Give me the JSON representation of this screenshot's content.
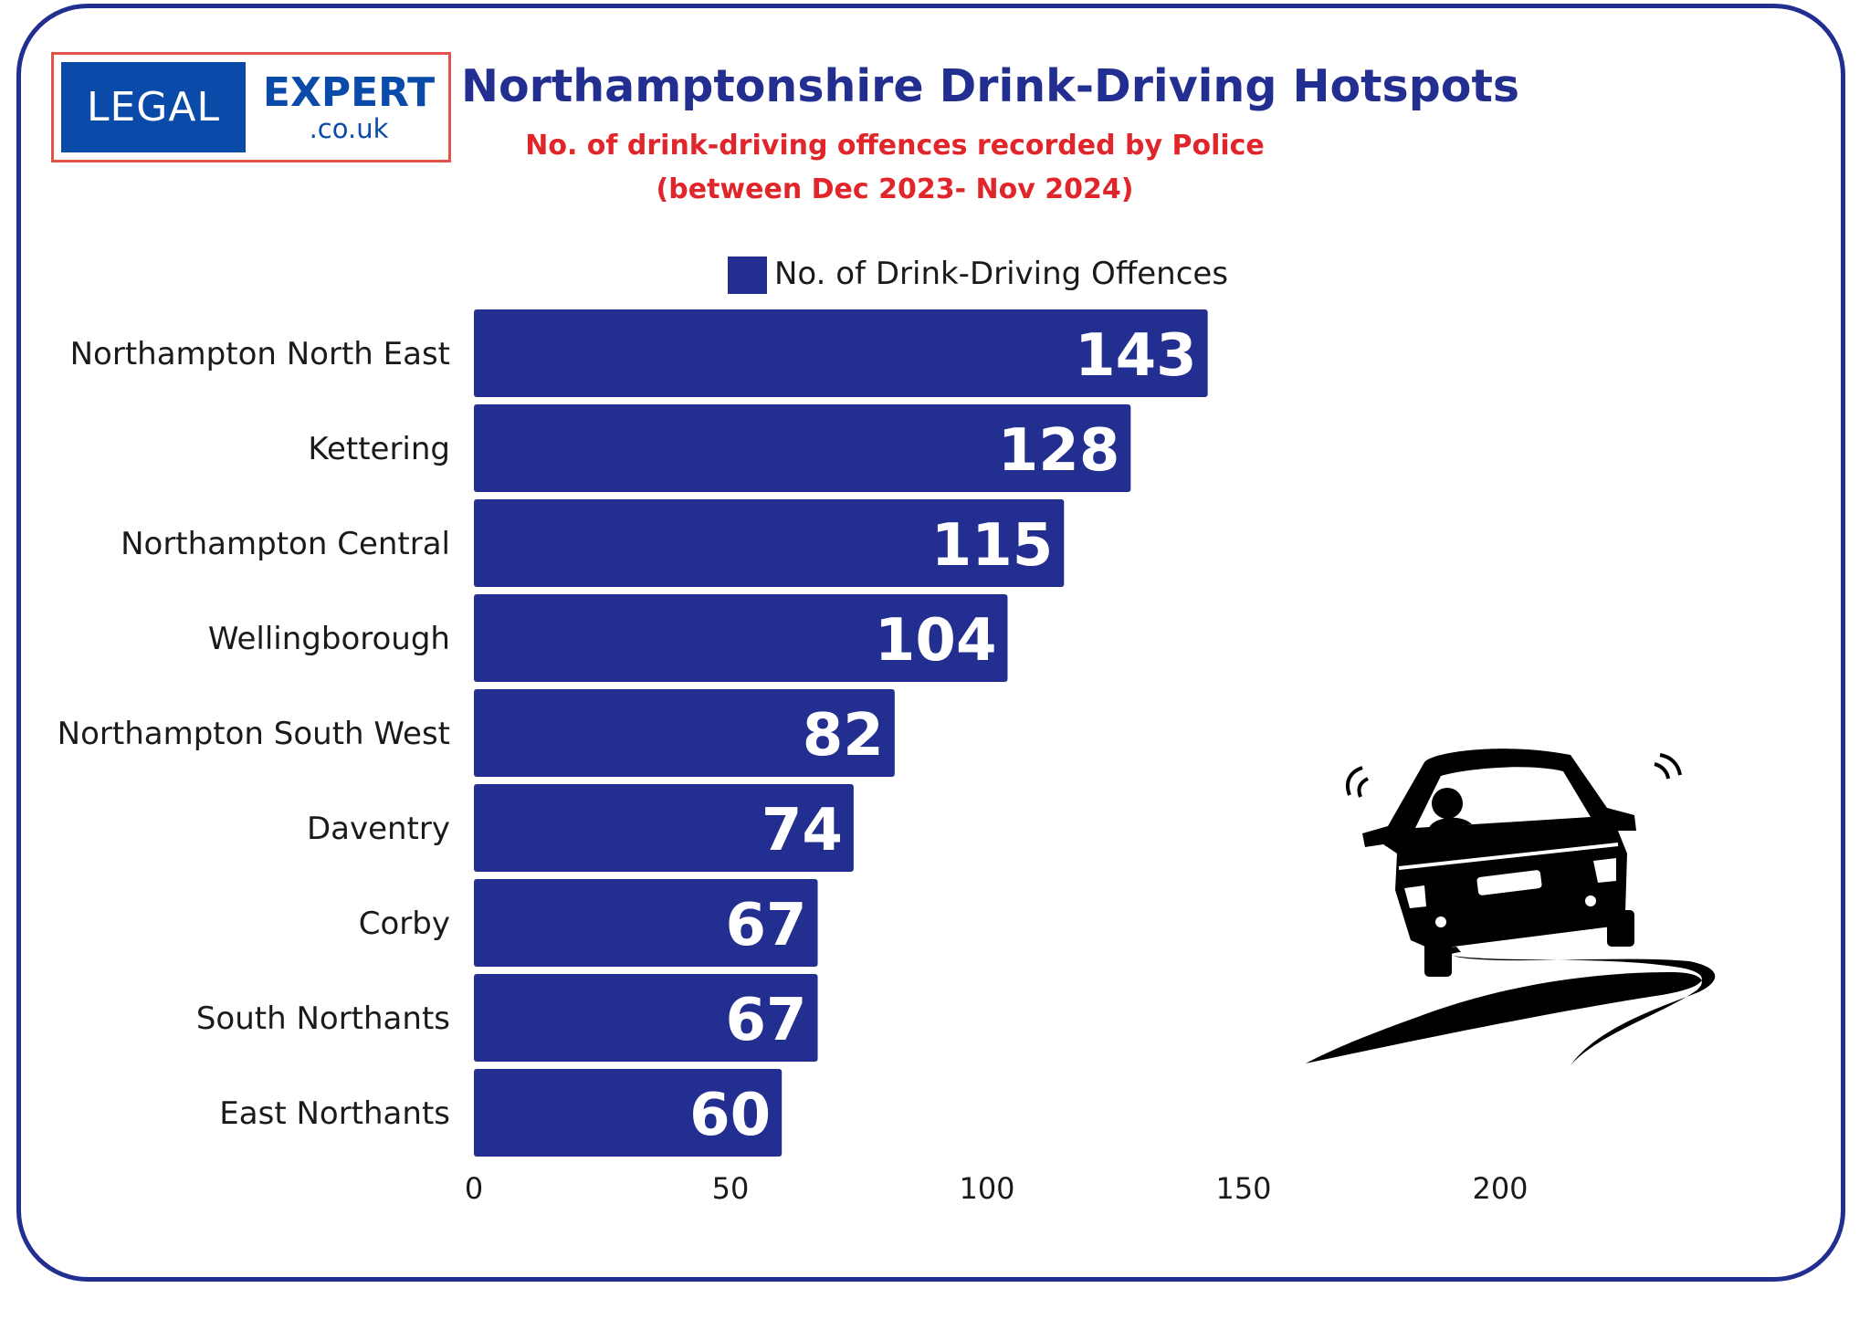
{
  "logo": {
    "left_text": "LEGAL",
    "right_text": "EXPERT",
    "domain_text": ".co.uk"
  },
  "header": {
    "title": "Northamptonshire Drink-Driving Hotspots",
    "subtitle_line1": "No. of drink-driving offences recorded by Police",
    "subtitle_line2": "(between Dec 2023- Nov 2024)"
  },
  "colors": {
    "bar": "#232e91",
    "title": "#232e91",
    "subtitle": "#e0252b",
    "frame": "#232e91",
    "logo_blue": "#0a4aa8",
    "logo_border": "#e2534a"
  },
  "illustration": {
    "icon": "swerving-car-icon"
  },
  "chart_data": {
    "type": "bar",
    "orientation": "horizontal",
    "title": "Northamptonshire Drink-Driving Hotspots",
    "subtitle": "No. of drink-driving offences recorded by Police (between Dec 2023- Nov 2024)",
    "categories": [
      "Northampton North East",
      "Kettering",
      "Northampton Central",
      "Wellingborough",
      "Northampton South West",
      "Daventry",
      "Corby",
      "South Northants",
      "East Northants"
    ],
    "series": [
      {
        "name": "No. of Drink-Driving Offences",
        "values": [
          143,
          128,
          115,
          104,
          82,
          74,
          67,
          67,
          60
        ]
      }
    ],
    "xlim": [
      0,
      200
    ],
    "xticks": [
      0,
      50,
      100,
      150,
      200
    ],
    "xlabel": "",
    "ylabel": "",
    "grid": false,
    "legend_position": "top-center",
    "data_labels": true
  }
}
